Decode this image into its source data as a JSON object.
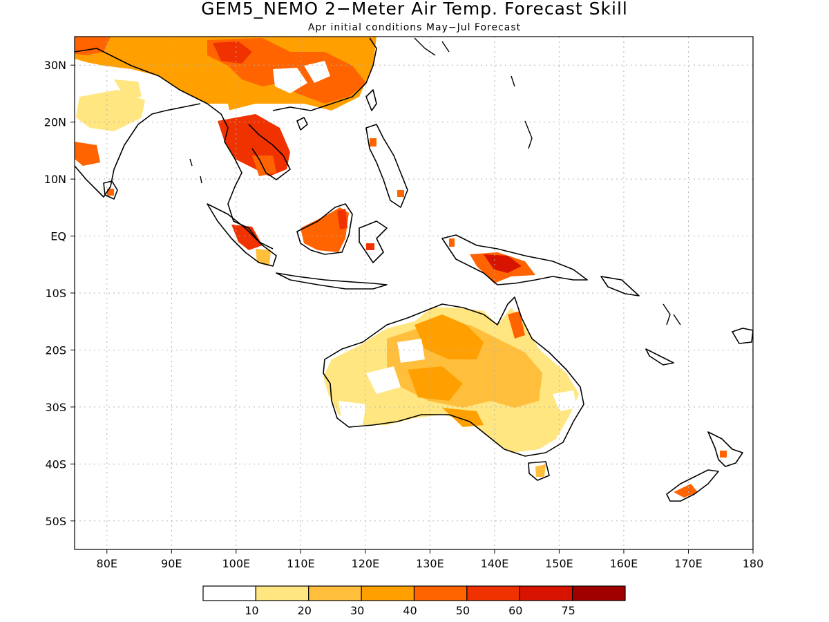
{
  "title": "GEM5_NEMO 2−Meter Air Temp. Forecast Skill",
  "subtitle": "Apr initial conditions  May−Jul Forecast",
  "map": {
    "lon_range": [
      75,
      180
    ],
    "lat_range": [
      -55,
      35
    ],
    "x_ticks": [
      {
        "value": 80,
        "label": "80E"
      },
      {
        "value": 90,
        "label": "90E"
      },
      {
        "value": 100,
        "label": "100E"
      },
      {
        "value": 110,
        "label": "110E"
      },
      {
        "value": 120,
        "label": "120E"
      },
      {
        "value": 130,
        "label": "130E"
      },
      {
        "value": 140,
        "label": "140E"
      },
      {
        "value": 150,
        "label": "150E"
      },
      {
        "value": 160,
        "label": "160E"
      },
      {
        "value": 170,
        "label": "170E"
      },
      {
        "value": 180,
        "label": "180"
      }
    ],
    "y_ticks": [
      {
        "value": 30,
        "label": "30N"
      },
      {
        "value": 20,
        "label": "20N"
      },
      {
        "value": 10,
        "label": "10N"
      },
      {
        "value": 0,
        "label": "EQ"
      },
      {
        "value": -10,
        "label": "10S"
      },
      {
        "value": -20,
        "label": "20S"
      },
      {
        "value": -30,
        "label": "30S"
      },
      {
        "value": -40,
        "label": "40S"
      },
      {
        "value": -50,
        "label": "50S"
      }
    ],
    "grid": true
  },
  "colorbar": {
    "colors": [
      "#ffffff",
      "#ffe680",
      "#ffbe3c",
      "#ffa000",
      "#ff6400",
      "#f03200",
      "#d81400",
      "#a00000"
    ],
    "labels": [
      "10",
      "20",
      "30",
      "40",
      "50",
      "60",
      "75"
    ]
  }
}
